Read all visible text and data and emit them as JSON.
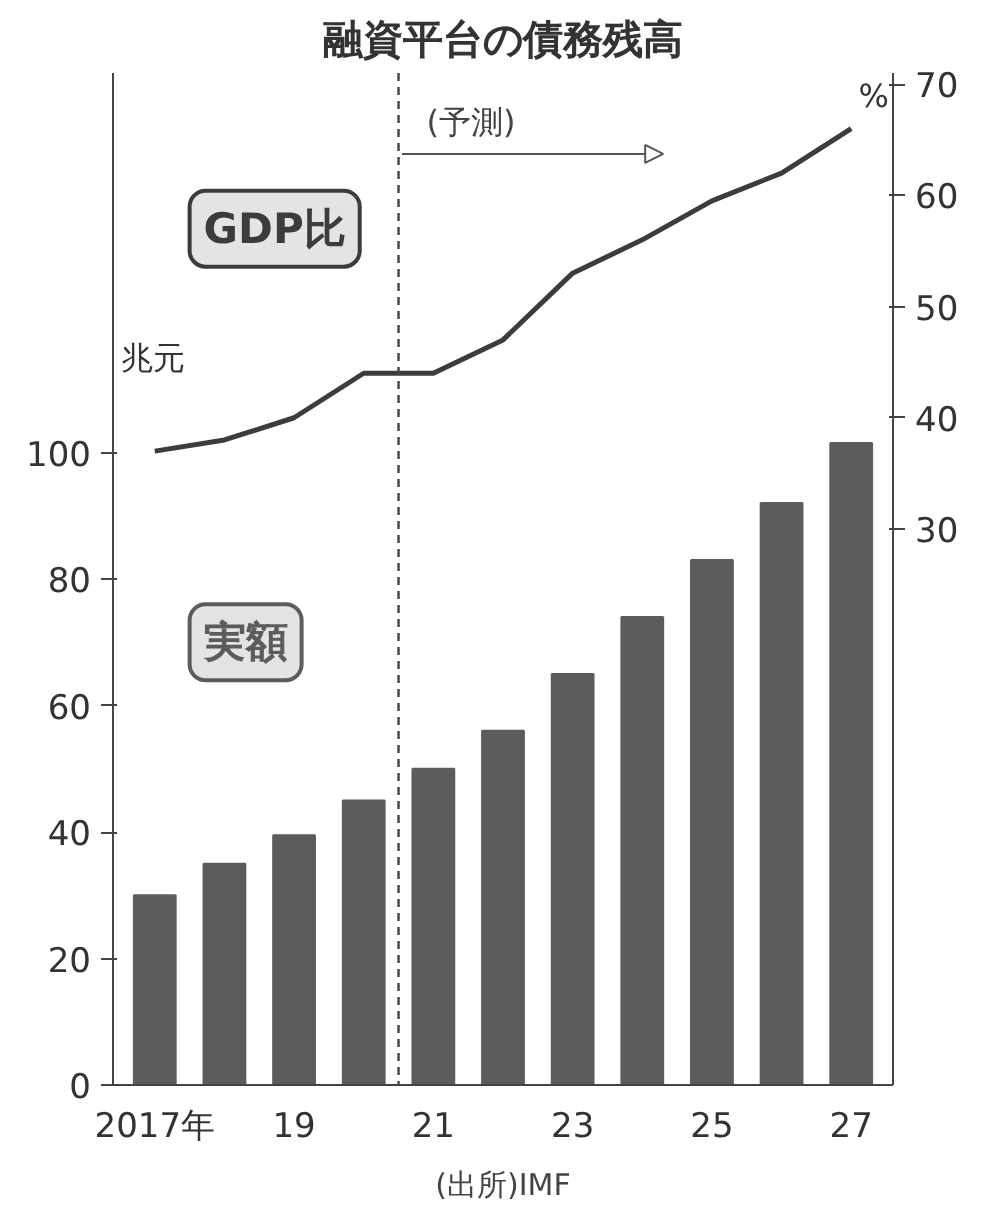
{
  "chart_data": {
    "type": "bar",
    "title": "融資平台の債務残高",
    "ylabel": "兆元",
    "y2label": "%",
    "x": [
      2017,
      2018,
      2019,
      2020,
      2021,
      2022,
      2023,
      2024,
      2025,
      2026,
      2027
    ],
    "xlim": [
      2016.4,
      2027.6
    ],
    "xticks": [
      {
        "value": 2017,
        "label": "2017年"
      },
      {
        "value": 2019,
        "label": "19"
      },
      {
        "value": 2021,
        "label": "21"
      },
      {
        "value": 2023,
        "label": "23"
      },
      {
        "value": 2025,
        "label": "25"
      },
      {
        "value": 2027,
        "label": "27"
      }
    ],
    "ylim": [
      0,
      160
    ],
    "yticks": [
      0,
      20,
      40,
      60,
      80,
      100
    ],
    "y2lim": [
      -20,
      71
    ],
    "y2ticks": [
      30,
      40,
      50,
      60,
      70
    ],
    "series": [
      {
        "name": "実額",
        "color": "#5c5c5c",
        "values": [
          30,
          35,
          39.5,
          45,
          50,
          56,
          65,
          74,
          83,
          92,
          101.5
        ]
      },
      {
        "name": "GDP比",
        "type": "line",
        "axis": "y2",
        "color": "#3c3c3c",
        "values": [
          37,
          38,
          40,
          44,
          44,
          47,
          53,
          56,
          59.5,
          62,
          66
        ]
      }
    ],
    "ref_lines": [
      {
        "axis": "x",
        "value": 2020.5,
        "label": "(予測)",
        "line_style": "dashed",
        "color": "#444444"
      }
    ],
    "annotations": [
      "(出所)IMF"
    ],
    "grid": false,
    "legend": false
  }
}
